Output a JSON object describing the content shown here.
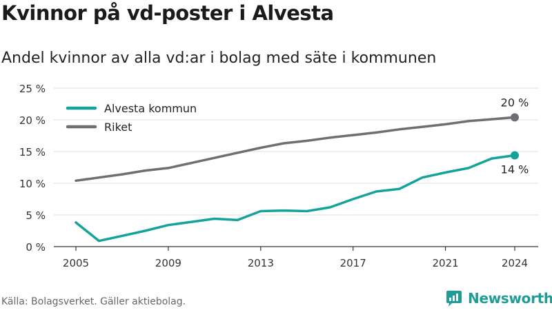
{
  "header": {
    "title": "Kvinnor på vd-poster i Alvesta",
    "subtitle": "Andel kvinnor av alla vd:ar i bolag med säte i kommunen"
  },
  "footer": {
    "source": "Källa: Bolagsverket. Gäller aktiebolag.",
    "brand": "Newsworthy",
    "brand_icon": "newsworthy-logo-icon"
  },
  "colors": {
    "alvesta": "#14a39a",
    "riket": "#6e6e73",
    "grid": "#dddddd",
    "axis": "#333333",
    "brand": "#1f9c95"
  },
  "chart_data": {
    "type": "line",
    "x": [
      2005,
      2006,
      2007,
      2008,
      2009,
      2010,
      2011,
      2012,
      2013,
      2014,
      2015,
      2016,
      2017,
      2018,
      2019,
      2020,
      2021,
      2022,
      2023,
      2024
    ],
    "series": [
      {
        "name": "Alvesta kommun",
        "color": "#14a39a",
        "values": [
          3.8,
          0.9,
          1.7,
          2.5,
          3.4,
          3.9,
          4.4,
          4.2,
          5.6,
          5.7,
          5.6,
          6.2,
          7.5,
          8.7,
          9.1,
          10.9,
          11.7,
          12.4,
          13.9,
          14.4
        ],
        "end_label": "14 %"
      },
      {
        "name": "Riket",
        "color": "#6e6e73",
        "values": [
          10.4,
          10.9,
          11.4,
          12.0,
          12.4,
          13.2,
          14.0,
          14.8,
          15.6,
          16.3,
          16.7,
          17.2,
          17.6,
          18.0,
          18.5,
          18.9,
          19.3,
          19.8,
          20.1,
          20.4
        ],
        "end_label": "20 %"
      }
    ],
    "x_ticks": [
      2005,
      2009,
      2013,
      2017,
      2021,
      2024
    ],
    "y_ticks": [
      0,
      5,
      10,
      15,
      20,
      25
    ],
    "y_tick_suffix": " %",
    "ylim": [
      0,
      25
    ],
    "xlim": [
      2005,
      2024
    ],
    "grid": "horizontal",
    "legend_position": "top-left"
  }
}
